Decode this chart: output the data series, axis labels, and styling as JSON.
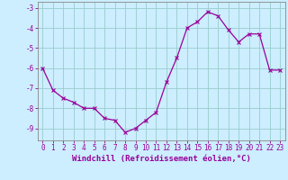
{
  "x": [
    0,
    1,
    2,
    3,
    4,
    5,
    6,
    7,
    8,
    9,
    10,
    11,
    12,
    13,
    14,
    15,
    16,
    17,
    18,
    19,
    20,
    21,
    22,
    23
  ],
  "y": [
    -6.0,
    -7.1,
    -7.5,
    -7.7,
    -8.0,
    -8.0,
    -8.5,
    -8.6,
    -9.2,
    -9.0,
    -8.6,
    -8.2,
    -6.7,
    -5.5,
    -4.0,
    -3.7,
    -3.2,
    -3.4,
    -4.1,
    -4.7,
    -4.3,
    -4.3,
    -6.1,
    -6.1
  ],
  "line_color": "#990099",
  "marker": "x",
  "marker_size": 3,
  "marker_linewidth": 0.8,
  "background_color": "#cceeff",
  "grid_color": "#99cccc",
  "axis_color": "#888888",
  "xlabel": "Windchill (Refroidissement éolien,°C)",
  "xlabel_color": "#990099",
  "ylabel_ticks": [
    -3,
    -4,
    -5,
    -6,
    -7,
    -8,
    -9
  ],
  "xtick_labels": [
    "0",
    "1",
    "2",
    "3",
    "4",
    "5",
    "6",
    "7",
    "8",
    "9",
    "10",
    "11",
    "12",
    "13",
    "14",
    "15",
    "16",
    "17",
    "18",
    "19",
    "20",
    "21",
    "22",
    "23"
  ],
  "ylim": [
    -9.6,
    -2.7
  ],
  "xlim": [
    -0.5,
    23.5
  ],
  "tick_color": "#990099",
  "tick_fontsize": 5.5,
  "xlabel_fontsize": 6.5,
  "line_width": 0.9
}
